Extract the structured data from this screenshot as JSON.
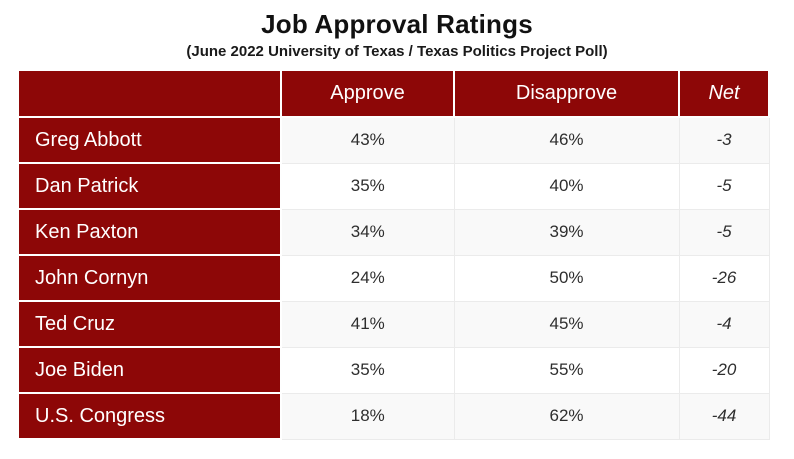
{
  "title": "Job Approval Ratings",
  "subtitle": "(June 2022 University of Texas / Texas Politics Project Poll)",
  "colors": {
    "accent_red": "#8d0707",
    "row_alt_bg": "#f9f9f9",
    "row_bg": "#ffffff",
    "grid_line": "#ebebeb",
    "header_text": "#ffffff",
    "data_text": "#2e2e2e"
  },
  "chart_data": {
    "type": "table",
    "title": "Job Approval Ratings",
    "subtitle": "(June 2022 University of Texas / Texas Politics Project Poll)",
    "columns": [
      "",
      "Approve",
      "Disapprove",
      "Net"
    ],
    "rows": [
      [
        "Greg Abbott",
        "43%",
        "46%",
        "-3"
      ],
      [
        "Dan Patrick",
        "35%",
        "40%",
        "-5"
      ],
      [
        "Ken Paxton",
        "34%",
        "39%",
        "-5"
      ],
      [
        "John Cornyn",
        "24%",
        "50%",
        "-26"
      ],
      [
        "Ted Cruz",
        "41%",
        "45%",
        "-4"
      ],
      [
        "Joe Biden",
        "35%",
        "55%",
        "-20"
      ],
      [
        "U.S. Congress",
        "18%",
        "62%",
        "-44"
      ]
    ],
    "net_values_numeric": [
      -3,
      -5,
      -5,
      -26,
      -4,
      -20,
      -44
    ],
    "approve_values_numeric": [
      43,
      35,
      34,
      24,
      41,
      35,
      18
    ],
    "disapprove_values_numeric": [
      46,
      40,
      39,
      50,
      45,
      55,
      62
    ],
    "legend_position": "none",
    "grid": true
  }
}
